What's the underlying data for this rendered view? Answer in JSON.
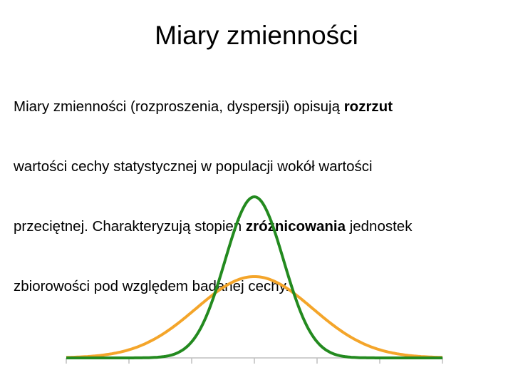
{
  "title": "Miary zmienności",
  "paragraph": {
    "lines": [
      [
        "Miary zmienności (rozproszenia, dyspersji) opisują ",
        "rozrzut"
      ],
      [
        "wartości cechy statystycznej w populacji wokół wartości"
      ],
      [
        "przeciętnej. Charakteryzują stopień ",
        "zróżnicowania",
        " jednostek"
      ],
      [
        "zbiorowości pod względem badanej cechy."
      ]
    ]
  }
}
